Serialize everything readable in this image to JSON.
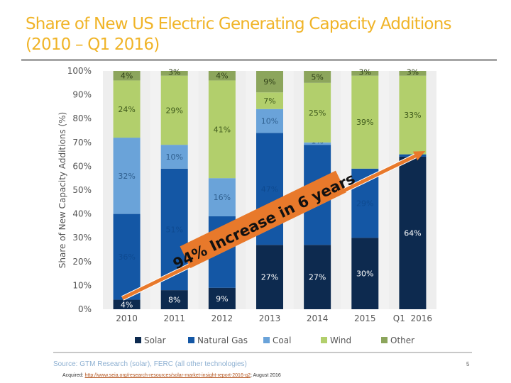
{
  "slide": {
    "title": "Share of New US Electric Generating Capacity Additions\n(2010 – Q1 2016)",
    "source": "Source: GTM Research (solar), FERC (all other technologies)",
    "page_number": "5",
    "acquired_label": "Acquired:",
    "acquired_url": "http://www.seia.org/research-resources/solar-market-insight-report-2016-q2",
    "acquired_date": "; August 2016"
  },
  "chart_data": {
    "type": "bar",
    "stacked": true,
    "ylabel": "Share of New Capacity Additions (%)",
    "ylim": [
      0,
      100
    ],
    "yticks": [
      "0%",
      "10%",
      "20%",
      "30%",
      "40%",
      "50%",
      "60%",
      "70%",
      "80%",
      "90%",
      "100%"
    ],
    "categories": [
      "2010",
      "2011",
      "2012",
      "2013",
      "2014",
      "2015",
      "Q1  2016"
    ],
    "legend_position": "bottom",
    "series": [
      {
        "name": "Solar",
        "color": "#0d2a4f",
        "label_color": "#ffffff",
        "values": [
          4,
          8,
          9,
          27,
          27,
          30,
          64
        ],
        "labels": [
          "4%",
          "8%",
          "9%",
          "27%",
          "27%",
          "30%",
          "64%"
        ]
      },
      {
        "name": "Natural Gas",
        "color": "#1457a5",
        "label_color": "#0e4a90",
        "values": [
          36,
          51,
          30,
          47,
          42,
          29,
          1
        ],
        "labels": [
          "36%",
          "51%",
          "",
          "47%",
          "",
          "29%",
          "1%"
        ]
      },
      {
        "name": "Coal",
        "color": "#6aa3d9",
        "label_color": "#2f5f8e",
        "values": [
          32,
          10,
          16,
          10,
          1,
          0,
          0
        ],
        "labels": [
          "32%",
          "10%",
          "16%",
          "10%",
          "1%",
          "",
          ""
        ]
      },
      {
        "name": "Wind",
        "color": "#b2cf6c",
        "label_color": "#3f5a1c",
        "values": [
          24,
          29,
          41,
          7,
          25,
          39,
          33
        ],
        "labels": [
          "24%",
          "29%",
          "41%",
          "7%",
          "25%",
          "39%",
          "33%"
        ]
      },
      {
        "name": "Other",
        "color": "#8ca55c",
        "label_color": "#2f3f18",
        "values": [
          4,
          3,
          4,
          9,
          5,
          3,
          3
        ],
        "labels": [
          "4%",
          "3%",
          "4%",
          "9%",
          "5%",
          "3%",
          "3%"
        ]
      }
    ],
    "annotation": {
      "text": "94% Increase in 6 years",
      "color": "#e8792b",
      "from_category": "2010",
      "from_value": 4,
      "to_category": "Q1  2016",
      "to_value": 64
    }
  }
}
